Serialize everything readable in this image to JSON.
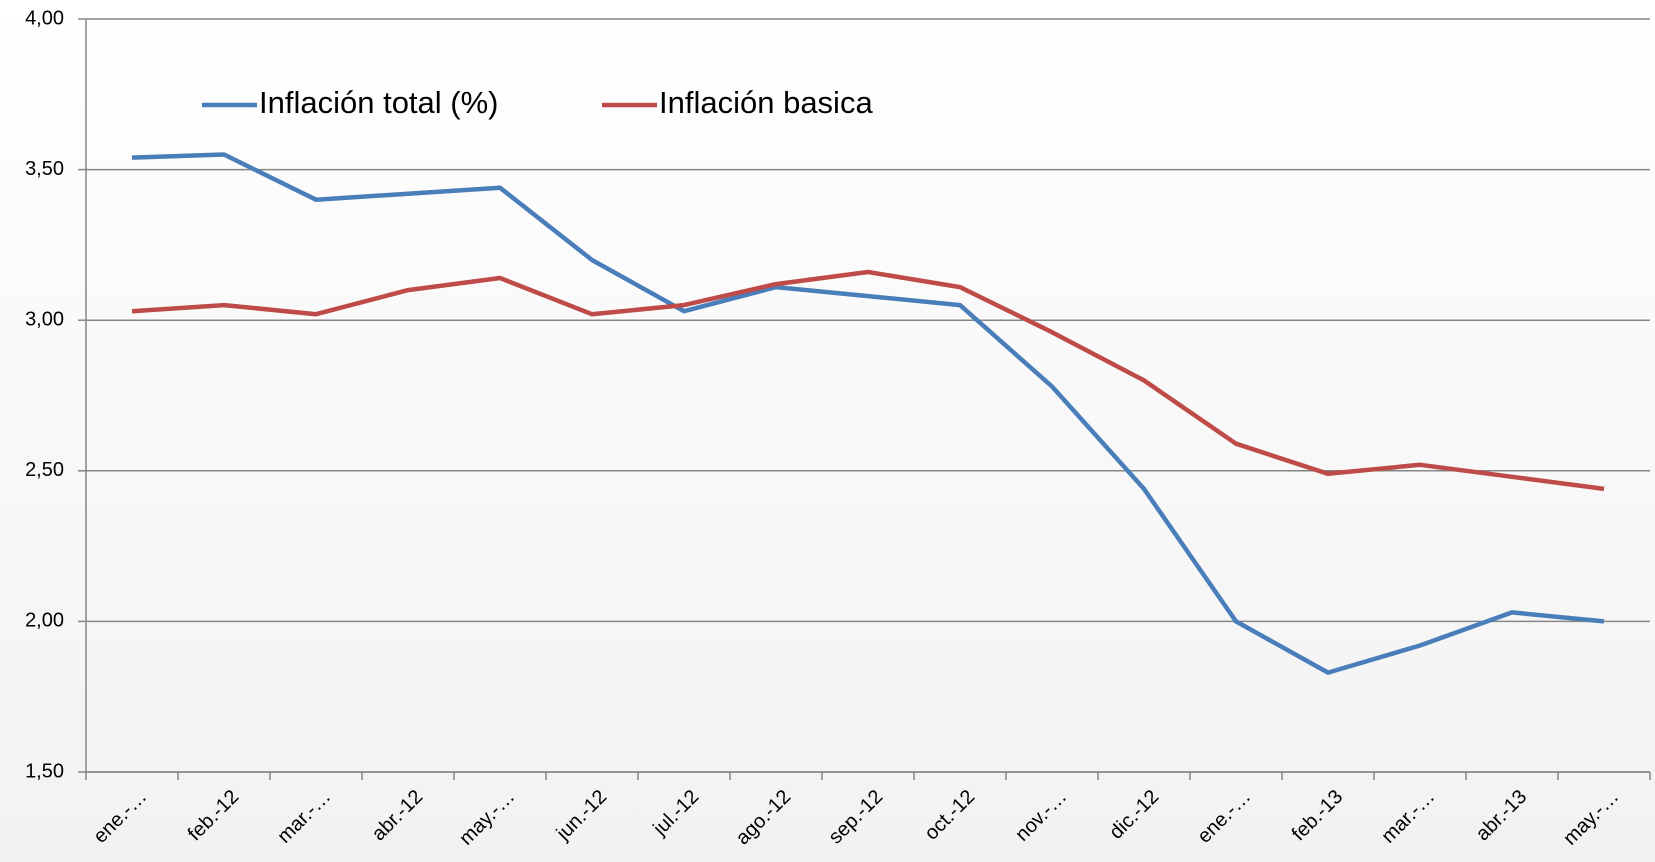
{
  "chart_data": {
    "type": "line",
    "categories": [
      "ene.-…",
      "feb.-12",
      "mar.-…",
      "abr.-12",
      "may.-…",
      "jun.-12",
      "jul.-12",
      "ago.-12",
      "sep.-12",
      "oct.-12",
      "nov.-…",
      "dic.-12",
      "ene.-…",
      "feb.-13",
      "mar.-…",
      "abr.-13",
      "may.-…"
    ],
    "series": [
      {
        "name": "Inflación total (%)",
        "color": "#4a7ebb",
        "values": [
          3.54,
          3.55,
          3.4,
          3.42,
          3.44,
          3.2,
          3.03,
          3.11,
          3.08,
          3.05,
          2.78,
          2.44,
          2.0,
          1.83,
          1.92,
          2.03,
          2.0
        ]
      },
      {
        "name": "Inflación basica",
        "color": "#be4b48",
        "values": [
          3.03,
          3.05,
          3.02,
          3.1,
          3.14,
          3.02,
          3.05,
          3.12,
          3.16,
          3.11,
          2.96,
          2.8,
          2.59,
          2.49,
          2.52,
          2.48,
          2.44
        ]
      }
    ],
    "ylim": [
      1.5,
      4.0
    ],
    "yticks": [
      {
        "value": 1.5,
        "label": "1,50"
      },
      {
        "value": 2.0,
        "label": "2,00"
      },
      {
        "value": 2.5,
        "label": "2,50"
      },
      {
        "value": 3.0,
        "label": "3,00"
      },
      {
        "value": 3.5,
        "label": "3,50"
      },
      {
        "value": 4.0,
        "label": "4,00"
      }
    ],
    "grid": true
  }
}
